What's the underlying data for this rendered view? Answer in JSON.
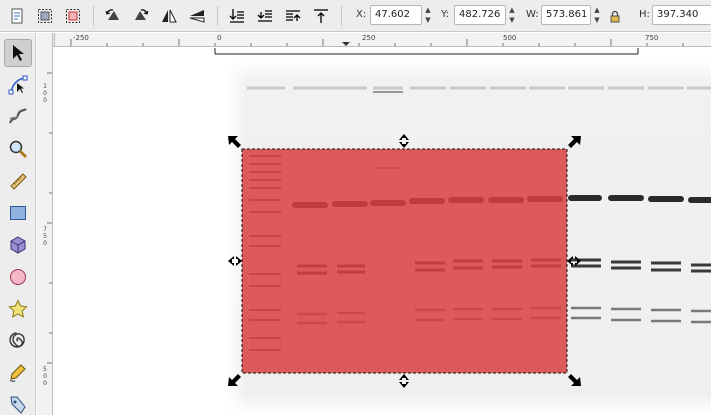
{
  "toolbar": {
    "buttons": [
      {
        "name": "select-all-icon"
      },
      {
        "name": "select-all-layers-icon"
      },
      {
        "name": "deselect-icon"
      },
      {
        "name": "rotate-ccw-icon"
      },
      {
        "name": "rotate-cw-icon"
      },
      {
        "name": "flip-horizontal-icon"
      },
      {
        "name": "flip-vertical-icon"
      },
      {
        "name": "lower-to-bottom-icon"
      },
      {
        "name": "lower-icon"
      },
      {
        "name": "raise-icon"
      },
      {
        "name": "raise-to-top-icon"
      }
    ],
    "x_label": "X:",
    "x_value": "47.602",
    "y_label": "Y:",
    "y_value": "482.726",
    "w_label": "W:",
    "w_value": "573.861",
    "h_label": "H:",
    "h_value": "397.340"
  },
  "tools": [
    {
      "name": "selector-tool-icon",
      "active": true
    },
    {
      "name": "node-tool-icon"
    },
    {
      "name": "tweak-tool-icon"
    },
    {
      "name": "zoom-tool-icon"
    },
    {
      "name": "measure-tool-icon"
    },
    {
      "name": "rectangle-tool-icon"
    },
    {
      "name": "3d-box-tool-icon"
    },
    {
      "name": "ellipse-tool-icon"
    },
    {
      "name": "star-tool-icon"
    },
    {
      "name": "spiral-tool-icon"
    },
    {
      "name": "pencil-tool-icon"
    },
    {
      "name": "pen-tool-icon"
    }
  ],
  "rulers": {
    "horizontal": [
      "-250",
      "0",
      "250",
      "500",
      "750"
    ],
    "vertical": [
      "1\n0\n0",
      "7\n5\n0",
      "5\n0\n0"
    ]
  },
  "colors": {
    "selection_overlay": "#d94040",
    "chrome": "#ededed"
  }
}
